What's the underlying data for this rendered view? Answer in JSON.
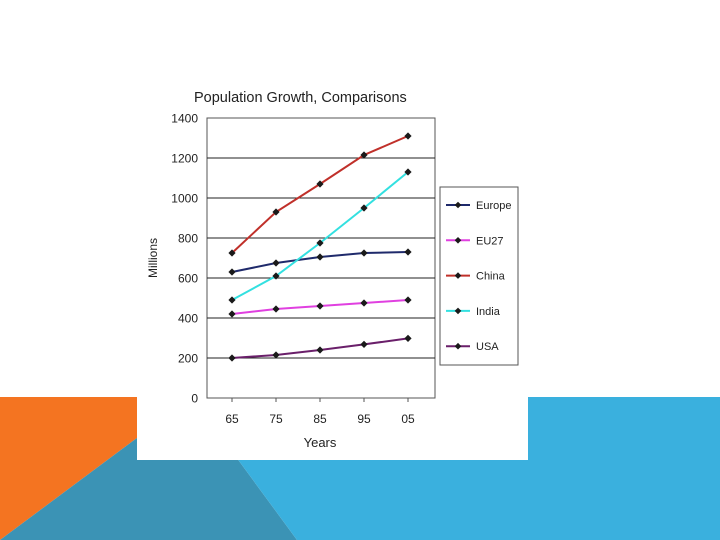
{
  "chart_data": {
    "type": "line",
    "title": "Population Growth, Comparisons",
    "xlabel": "Years",
    "ylabel": "Millions",
    "categories": [
      "65",
      "75",
      "85",
      "95",
      "05"
    ],
    "ylim": [
      0,
      1400
    ],
    "yticks": [
      0,
      200,
      400,
      600,
      800,
      1000,
      1200,
      1400
    ],
    "grid": true,
    "legend_position": "right",
    "series": [
      {
        "name": "Europe",
        "color": "#1f2a6b",
        "values": [
          630,
          675,
          705,
          725,
          730
        ]
      },
      {
        "name": "EU27",
        "color": "#e040e0",
        "values": [
          420,
          445,
          460,
          475,
          490
        ]
      },
      {
        "name": "China",
        "color": "#c0302a",
        "values": [
          725,
          930,
          1070,
          1215,
          1310
        ]
      },
      {
        "name": "India",
        "color": "#33e0e0",
        "values": [
          490,
          610,
          775,
          950,
          1130
        ]
      },
      {
        "name": "USA",
        "color": "#6a1f6a",
        "values": [
          200,
          215,
          240,
          268,
          298
        ]
      }
    ]
  },
  "theme": {
    "orange": "#f47421",
    "teal": "#3b93b5",
    "blue": "#3ab0de",
    "marker": "#1a1a1a"
  }
}
